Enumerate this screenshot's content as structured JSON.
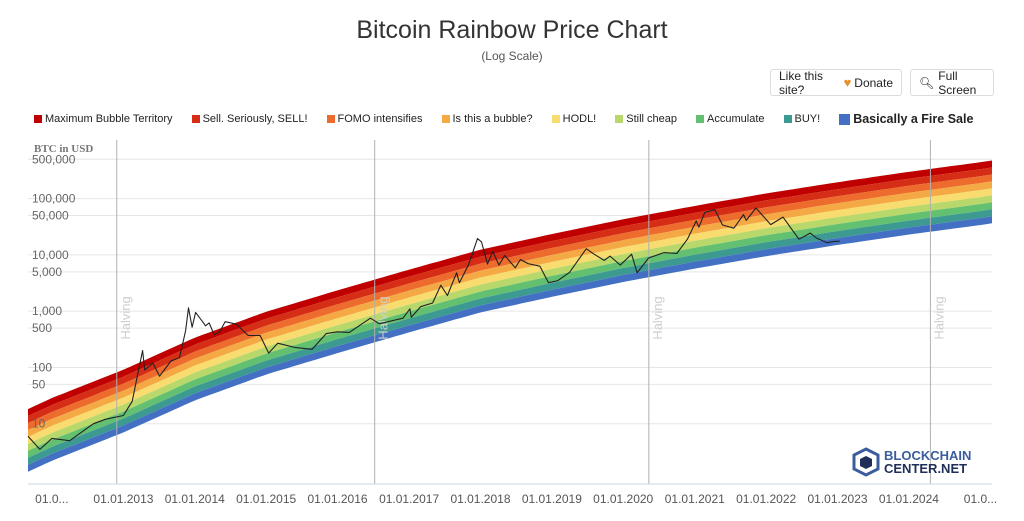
{
  "header": {
    "title": "Bitcoin Rainbow Price Chart",
    "subtitle": "(Log Scale)"
  },
  "buttons": {
    "donate_prefix": "Like this site?",
    "donate_label": "Donate",
    "fullscreen_label": "Full Screen"
  },
  "watermark": {
    "line1": "BLOCKCHAIN",
    "line2": "CENTER.NET"
  },
  "chart_data": {
    "type": "area",
    "yscale": "log",
    "ylabel": "BTC in USD",
    "xlim": [
      "2011-09-01",
      "2025-03-01"
    ],
    "ylim": [
      0.85,
      1100000
    ],
    "y_ticks": [
      "500,000",
      "100,000",
      "50,000",
      "10,000",
      "5,000",
      "1,000",
      "500",
      "100",
      "50",
      "10"
    ],
    "y_tick_values": [
      500000,
      100000,
      50000,
      10000,
      5000,
      1000,
      500,
      100,
      50,
      10
    ],
    "x_tick_labels": [
      "01.0...",
      "01.01.2013",
      "01.01.2014",
      "01.01.2015",
      "01.01.2016",
      "01.01.2017",
      "01.01.2018",
      "01.01.2019",
      "01.01.2020",
      "01.01.2021",
      "01.01.2022",
      "01.01.2023",
      "01.01.2024",
      "01.0..."
    ],
    "x_tick_dates": [
      "2012-01-01",
      "2013-01-01",
      "2014-01-01",
      "2015-01-01",
      "2016-01-01",
      "2017-01-01",
      "2018-01-01",
      "2019-01-01",
      "2020-01-01",
      "2021-01-01",
      "2022-01-01",
      "2023-01-01",
      "2024-01-01",
      "2025-01-01"
    ],
    "halvings": [
      {
        "label": "Halving",
        "date": "2012-11-28"
      },
      {
        "label": "Halving",
        "date": "2016-07-09"
      },
      {
        "label": "Halving",
        "date": "2020-05-11"
      },
      {
        "label": "Halving",
        "date": "2024-04-20"
      }
    ],
    "bands": [
      {
        "name": "Maximum Bubble Territory",
        "color": "#c00000"
      },
      {
        "name": "Sell. Seriously, SELL!",
        "color": "#d62e16"
      },
      {
        "name": "FOMO intensifies",
        "color": "#ec6b2d"
      },
      {
        "name": "Is this a bubble?",
        "color": "#f5a945"
      },
      {
        "name": "HODL!",
        "color": "#f8dc6f"
      },
      {
        "name": "Still cheap",
        "color": "#b8d86b"
      },
      {
        "name": "Accumulate",
        "color": "#63c070"
      },
      {
        "name": "BUY!",
        "color": "#3d9a90"
      },
      {
        "name": "Basically a Fire Sale",
        "color": "#4470c4"
      }
    ],
    "rainbow_bottom": [
      [
        "2011-09-01",
        1.4
      ],
      [
        "2012-01-01",
        2.2
      ],
      [
        "2013-01-01",
        7
      ],
      [
        "2014-01-01",
        26
      ],
      [
        "2015-01-01",
        75
      ],
      [
        "2016-01-01",
        180
      ],
      [
        "2017-01-01",
        420
      ],
      [
        "2018-01-01",
        950
      ],
      [
        "2019-01-01",
        1800
      ],
      [
        "2020-01-01",
        3300
      ],
      [
        "2021-01-01",
        5700
      ],
      [
        "2022-01-01",
        9500
      ],
      [
        "2023-01-01",
        15000
      ],
      [
        "2024-01-01",
        23000
      ],
      [
        "2025-01-01",
        34000
      ],
      [
        "2025-03-01",
        36500
      ]
    ],
    "band_step_factor": 1.33,
    "price": [
      [
        "2011-09-01",
        6
      ],
      [
        "2011-11-01",
        3.5
      ],
      [
        "2012-01-01",
        5.5
      ],
      [
        "2012-04-01",
        5
      ],
      [
        "2012-08-01",
        10
      ],
      [
        "2012-10-01",
        12
      ],
      [
        "2013-01-01",
        14
      ],
      [
        "2013-02-15",
        25
      ],
      [
        "2013-04-09",
        200
      ],
      [
        "2013-04-20",
        90
      ],
      [
        "2013-06-01",
        120
      ],
      [
        "2013-07-05",
        70
      ],
      [
        "2013-09-01",
        130
      ],
      [
        "2013-10-15",
        150
      ],
      [
        "2013-11-15",
        450
      ],
      [
        "2013-11-30",
        1150
      ],
      [
        "2013-12-18",
        520
      ],
      [
        "2014-01-05",
        950
      ],
      [
        "2014-02-10",
        650
      ],
      [
        "2014-02-25",
        550
      ],
      [
        "2014-03-15",
        620
      ],
      [
        "2014-04-10",
        380
      ],
      [
        "2014-05-10",
        440
      ],
      [
        "2014-06-05",
        650
      ],
      [
        "2014-08-01",
        590
      ],
      [
        "2014-10-01",
        370
      ],
      [
        "2014-12-01",
        370
      ],
      [
        "2015-01-14",
        180
      ],
      [
        "2015-03-01",
        270
      ],
      [
        "2015-06-01",
        225
      ],
      [
        "2015-08-24",
        210
      ],
      [
        "2015-11-04",
        400
      ],
      [
        "2016-01-01",
        430
      ],
      [
        "2016-03-01",
        420
      ],
      [
        "2016-06-17",
        750
      ],
      [
        "2016-08-01",
        600
      ],
      [
        "2016-12-01",
        750
      ],
      [
        "2017-01-05",
        1100
      ],
      [
        "2017-01-12",
        780
      ],
      [
        "2017-03-01",
        1200
      ],
      [
        "2017-05-01",
        1400
      ],
      [
        "2017-06-12",
        2900
      ],
      [
        "2017-07-16",
        1900
      ],
      [
        "2017-09-01",
        4800
      ],
      [
        "2017-09-15",
        3200
      ],
      [
        "2017-11-01",
        6700
      ],
      [
        "2017-12-17",
        19500
      ],
      [
        "2018-01-06",
        17000
      ],
      [
        "2018-02-06",
        6900
      ],
      [
        "2018-03-05",
        11500
      ],
      [
        "2018-04-06",
        6600
      ],
      [
        "2018-05-05",
        9800
      ],
      [
        "2018-06-28",
        5900
      ],
      [
        "2018-07-24",
        8300
      ],
      [
        "2018-09-01",
        7000
      ],
      [
        "2018-11-01",
        6300
      ],
      [
        "2018-12-15",
        3200
      ],
      [
        "2019-02-01",
        3500
      ],
      [
        "2019-04-02",
        4900
      ],
      [
        "2019-05-15",
        8000
      ],
      [
        "2019-06-26",
        12900
      ],
      [
        "2019-08-01",
        10500
      ],
      [
        "2019-09-26",
        8000
      ],
      [
        "2019-10-26",
        9500
      ],
      [
        "2019-12-17",
        6600
      ],
      [
        "2020-02-13",
        10300
      ],
      [
        "2020-03-12",
        4800
      ],
      [
        "2020-05-10",
        8800
      ],
      [
        "2020-07-27",
        11000
      ],
      [
        "2020-10-01",
        10600
      ],
      [
        "2020-11-24",
        19000
      ],
      [
        "2021-01-08",
        40000
      ],
      [
        "2021-01-22",
        31000
      ],
      [
        "2021-02-21",
        57000
      ],
      [
        "2021-04-14",
        63500
      ],
      [
        "2021-05-23",
        34000
      ],
      [
        "2021-07-20",
        29800
      ],
      [
        "2021-09-07",
        52000
      ],
      [
        "2021-09-21",
        41000
      ],
      [
        "2021-11-10",
        68000
      ],
      [
        "2022-01-24",
        34500
      ],
      [
        "2022-03-28",
        47000
      ],
      [
        "2022-05-12",
        28500
      ],
      [
        "2022-06-18",
        19000
      ],
      [
        "2022-08-14",
        24400
      ],
      [
        "2022-09-15",
        20000
      ],
      [
        "2022-11-09",
        16500
      ],
      [
        "2022-12-15",
        17400
      ],
      [
        "2023-01-12",
        17500
      ]
    ]
  }
}
